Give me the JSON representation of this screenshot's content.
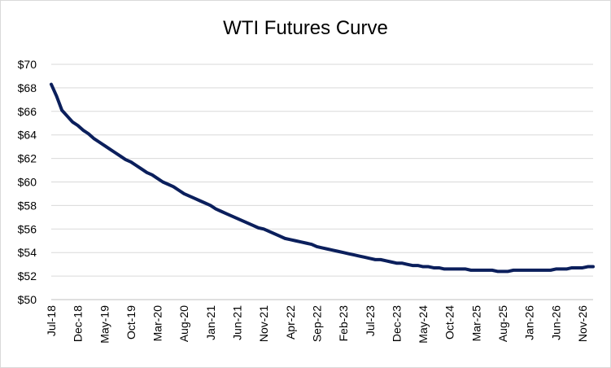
{
  "chart_data": {
    "type": "line",
    "title": "WTI Futures Curve",
    "xlabel": "",
    "ylabel": "",
    "ylim": [
      50,
      70
    ],
    "grid": true,
    "legend": "none",
    "colors": {
      "line": "#0b1f5c",
      "grid": "#d9d9d9",
      "axis": "#bfbfbf",
      "text": "#000000"
    },
    "y_ticks": [
      "$50",
      "$52",
      "$54",
      "$56",
      "$58",
      "$60",
      "$62",
      "$64",
      "$66",
      "$68",
      "$70"
    ],
    "x_tick_labels": [
      "Jul-18",
      "Dec-18",
      "May-19",
      "Oct-19",
      "Mar-20",
      "Aug-20",
      "Jan-21",
      "Jun-21",
      "Nov-21",
      "Apr-22",
      "Sep-22",
      "Feb-23",
      "Jul-23",
      "Dec-23",
      "May-24",
      "Oct-24",
      "Mar-25",
      "Aug-25",
      "Jan-26",
      "Jun-26",
      "Nov-26"
    ],
    "series": [
      {
        "x": [
          "Jul-18",
          "Aug-18",
          "Sep-18",
          "Oct-18",
          "Nov-18",
          "Dec-18",
          "Jan-19",
          "Feb-19",
          "Mar-19",
          "Apr-19",
          "May-19",
          "Jun-19",
          "Jul-19",
          "Aug-19",
          "Sep-19",
          "Oct-19",
          "Nov-19",
          "Dec-19",
          "Jan-20",
          "Feb-20",
          "Mar-20",
          "Apr-20",
          "May-20",
          "Jun-20",
          "Jul-20",
          "Aug-20",
          "Sep-20",
          "Oct-20",
          "Nov-20",
          "Dec-20",
          "Jan-21",
          "Feb-21",
          "Mar-21",
          "Apr-21",
          "May-21",
          "Jun-21",
          "Jul-21",
          "Aug-21",
          "Sep-21",
          "Oct-21",
          "Nov-21",
          "Dec-21",
          "Jan-22",
          "Feb-22",
          "Mar-22",
          "Apr-22",
          "May-22",
          "Jun-22",
          "Jul-22",
          "Aug-22",
          "Sep-22",
          "Oct-22",
          "Nov-22",
          "Dec-22",
          "Jan-23",
          "Feb-23",
          "Mar-23",
          "Apr-23",
          "May-23",
          "Jun-23",
          "Jul-23",
          "Aug-23",
          "Sep-23",
          "Oct-23",
          "Nov-23",
          "Dec-23",
          "Jan-24",
          "Feb-24",
          "Mar-24",
          "Apr-24",
          "May-24",
          "Jun-24",
          "Jul-24",
          "Aug-24",
          "Sep-24",
          "Oct-24",
          "Nov-24",
          "Dec-24",
          "Jan-25",
          "Feb-25",
          "Mar-25",
          "Apr-25",
          "May-25",
          "Jun-25",
          "Jul-25",
          "Aug-25",
          "Sep-25",
          "Oct-25",
          "Nov-25",
          "Dec-25",
          "Jan-26",
          "Feb-26",
          "Mar-26",
          "Apr-26",
          "May-26",
          "Jun-26",
          "Jul-26",
          "Aug-26",
          "Sep-26",
          "Oct-26",
          "Nov-26",
          "Dec-26",
          "Jan-27"
        ],
        "values": [
          68.3,
          67.3,
          66.1,
          65.6,
          65.1,
          64.8,
          64.4,
          64.1,
          63.7,
          63.4,
          63.1,
          62.8,
          62.5,
          62.2,
          61.9,
          61.7,
          61.4,
          61.1,
          60.8,
          60.6,
          60.3,
          60.0,
          59.8,
          59.6,
          59.3,
          59.0,
          58.8,
          58.6,
          58.4,
          58.2,
          58.0,
          57.7,
          57.5,
          57.3,
          57.1,
          56.9,
          56.7,
          56.5,
          56.3,
          56.1,
          56.0,
          55.8,
          55.6,
          55.4,
          55.2,
          55.1,
          55.0,
          54.9,
          54.8,
          54.7,
          54.5,
          54.4,
          54.3,
          54.2,
          54.1,
          54.0,
          53.9,
          53.8,
          53.7,
          53.6,
          53.5,
          53.4,
          53.4,
          53.3,
          53.2,
          53.1,
          53.1,
          53.0,
          52.9,
          52.9,
          52.8,
          52.8,
          52.7,
          52.7,
          52.6,
          52.6,
          52.6,
          52.6,
          52.6,
          52.5,
          52.5,
          52.5,
          52.5,
          52.5,
          52.4,
          52.4,
          52.4,
          52.5,
          52.5,
          52.5,
          52.5,
          52.5,
          52.5,
          52.5,
          52.5,
          52.6,
          52.6,
          52.6,
          52.7,
          52.7,
          52.7,
          52.8,
          52.8
        ]
      }
    ]
  }
}
